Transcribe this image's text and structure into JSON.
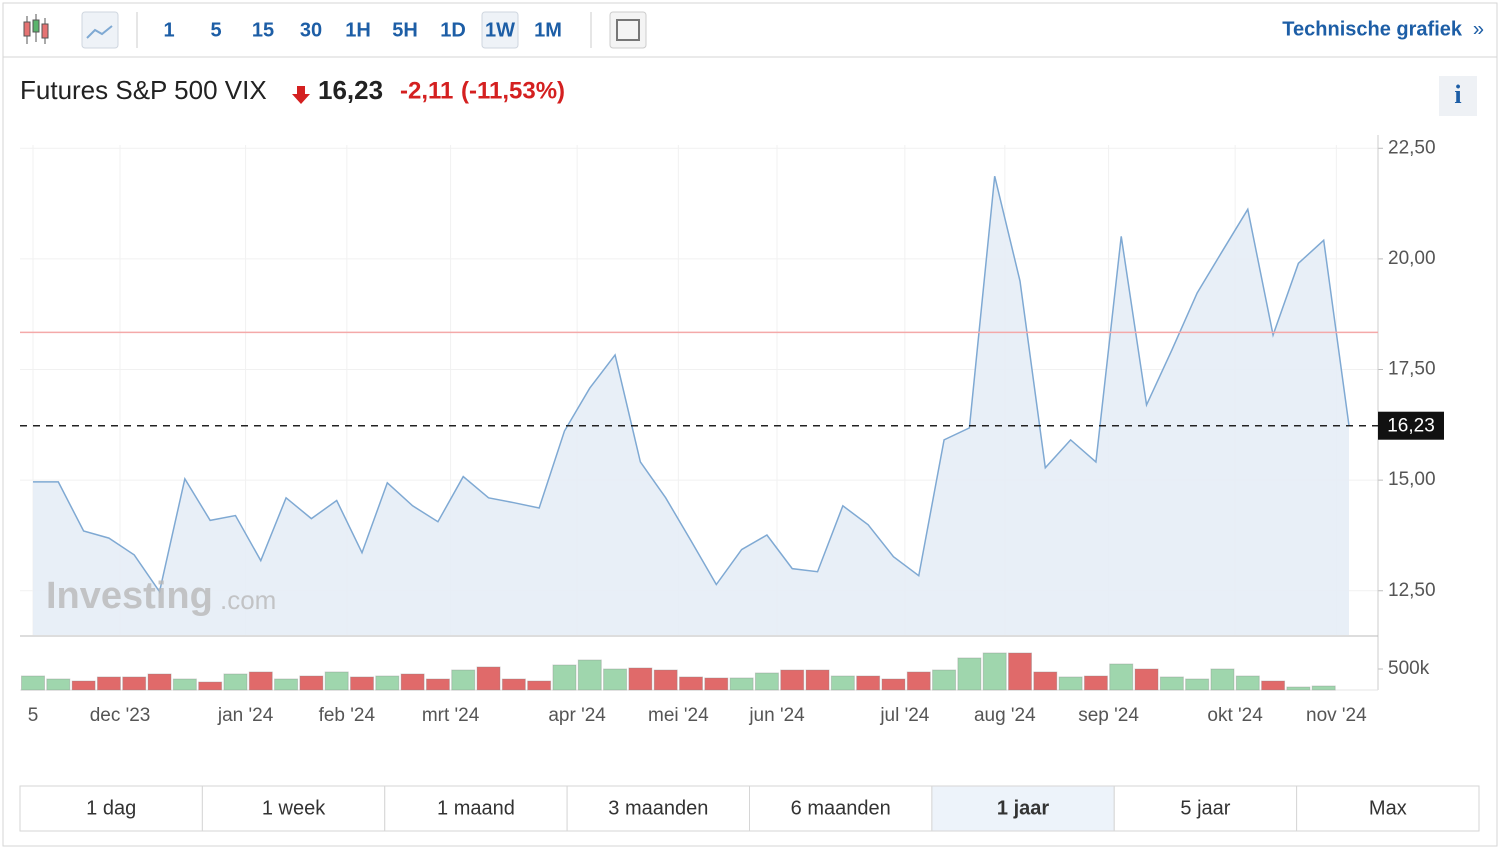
{
  "toolbar": {
    "intervals": [
      "1",
      "5",
      "15",
      "30",
      "1H",
      "5H",
      "1D",
      "1W",
      "1M"
    ],
    "active_interval": "1W",
    "link": "Technische grafiek",
    "link_arrow": "»"
  },
  "header": {
    "title": "Futures S&P 500 VIX",
    "price": "16,23",
    "change": "-2,11",
    "change_pct": "(-11,53%)",
    "info": "i"
  },
  "watermark": {
    "brand": "Investing",
    "suffix": ".com"
  },
  "chart_data": {
    "type": "line",
    "xlim": [
      0,
      52
    ],
    "xticks": [
      {
        "value": 0,
        "label": "5"
      },
      {
        "value": 3.44,
        "label": "dec '23"
      },
      {
        "value": 8.4,
        "label": "jan '24"
      },
      {
        "value": 12.4,
        "label": "feb '24"
      },
      {
        "value": 16.5,
        "label": "mrt '24"
      },
      {
        "value": 21.5,
        "label": "apr '24"
      },
      {
        "value": 25.5,
        "label": "mei '24"
      },
      {
        "value": 29.4,
        "label": "jun '24"
      },
      {
        "value": 34.45,
        "label": "jul '24"
      },
      {
        "value": 38.4,
        "label": "aug '24"
      },
      {
        "value": 42.5,
        "label": "sep '24"
      },
      {
        "value": 47.5,
        "label": "okt '24"
      },
      {
        "value": 51.5,
        "label": "nov '24"
      }
    ],
    "ylim": [
      11.5,
      22.8
    ],
    "yticks": [
      {
        "value": 12.5,
        "label": "12,50"
      },
      {
        "value": 15,
        "label": "15,00"
      },
      {
        "value": 17.5,
        "label": "17,50"
      },
      {
        "value": 20,
        "label": "20,00"
      },
      {
        "value": 22.5,
        "label": "22,50"
      }
    ],
    "y2lim": [
      0,
      1190000
    ],
    "y2ticks": [
      {
        "value": 500000,
        "label": "500k"
      }
    ],
    "grid": true,
    "reference_line": 18.34,
    "reference_color": "#f4a9a9",
    "series": [
      {
        "type": "line",
        "color": "#7fa9d3",
        "values": [
          14.96,
          14.96,
          13.85,
          13.69,
          13.31,
          12.48,
          15.03,
          14.09,
          14.2,
          13.18,
          14.6,
          14.13,
          14.54,
          13.36,
          14.94,
          14.42,
          14.06,
          15.08,
          14.6,
          14.49,
          14.37,
          16.11,
          17.08,
          17.83,
          15.41,
          14.6,
          13.63,
          12.64,
          13.43,
          13.76,
          13.0,
          12.93,
          14.42,
          13.99,
          13.27,
          12.84,
          15.91,
          16.18,
          21.87,
          19.5,
          15.28,
          15.91,
          15.41,
          20.51,
          16.7,
          17.94,
          19.23,
          20.18,
          21.12,
          18.28,
          19.9,
          20.42,
          16.23
        ],
        "value_labels": [
          null,
          null,
          null,
          null,
          null,
          null,
          null,
          null,
          null,
          null,
          null,
          null,
          null,
          null,
          null,
          null,
          null,
          null,
          null,
          null,
          null,
          null,
          null,
          null,
          null,
          null,
          null,
          null,
          null,
          null,
          null,
          null,
          null,
          null,
          null,
          null,
          null,
          null,
          null,
          null,
          null,
          null,
          null,
          null,
          null,
          null,
          null,
          null,
          null,
          null,
          null,
          null,
          "16,23"
        ]
      },
      {
        "type": "bar",
        "axis": "y2",
        "values": [
          333000,
          262000,
          214000,
          310000,
          310000,
          381000,
          262000,
          190000,
          381000,
          429000,
          262000,
          333000,
          429000,
          310000,
          333000,
          381000,
          262000,
          476000,
          548000,
          262000,
          214000,
          595000,
          714000,
          500000,
          524000,
          476000,
          310000,
          286000,
          286000,
          405000,
          476000,
          476000,
          333000,
          333000,
          262000,
          429000,
          476000,
          762000,
          881000,
          881000,
          429000,
          310000,
          333000,
          619000,
          500000,
          310000,
          262000,
          500000,
          333000,
          214000,
          71000,
          95000,
          null
        ],
        "colors": [
          "#9fd6ad",
          "#9fd6ad",
          "#e06a6a",
          "#e06a6a",
          "#e06a6a",
          "#e06a6a",
          "#9fd6ad",
          "#e06a6a",
          "#9fd6ad",
          "#e06a6a",
          "#9fd6ad",
          "#e06a6a",
          "#9fd6ad",
          "#e06a6a",
          "#9fd6ad",
          "#e06a6a",
          "#e06a6a",
          "#9fd6ad",
          "#e06a6a",
          "#e06a6a",
          "#e06a6a",
          "#9fd6ad",
          "#9fd6ad",
          "#9fd6ad",
          "#e06a6a",
          "#e06a6a",
          "#e06a6a",
          "#e06a6a",
          "#9fd6ad",
          "#9fd6ad",
          "#e06a6a",
          "#e06a6a",
          "#9fd6ad",
          "#e06a6a",
          "#e06a6a",
          "#e06a6a",
          "#9fd6ad",
          "#9fd6ad",
          "#9fd6ad",
          "#e06a6a",
          "#e06a6a",
          "#9fd6ad",
          "#e06a6a",
          "#9fd6ad",
          "#e06a6a",
          "#9fd6ad",
          "#9fd6ad",
          "#9fd6ad",
          "#9fd6ad",
          "#e06a6a",
          "#9fd6ad",
          "#9fd6ad",
          null
        ]
      }
    ]
  },
  "ranges": {
    "items": [
      "1 dag",
      "1 week",
      "1 maand",
      "3 maanden",
      "6 maanden",
      "1 jaar",
      "5 jaar",
      "Max"
    ],
    "active": "1 jaar"
  }
}
